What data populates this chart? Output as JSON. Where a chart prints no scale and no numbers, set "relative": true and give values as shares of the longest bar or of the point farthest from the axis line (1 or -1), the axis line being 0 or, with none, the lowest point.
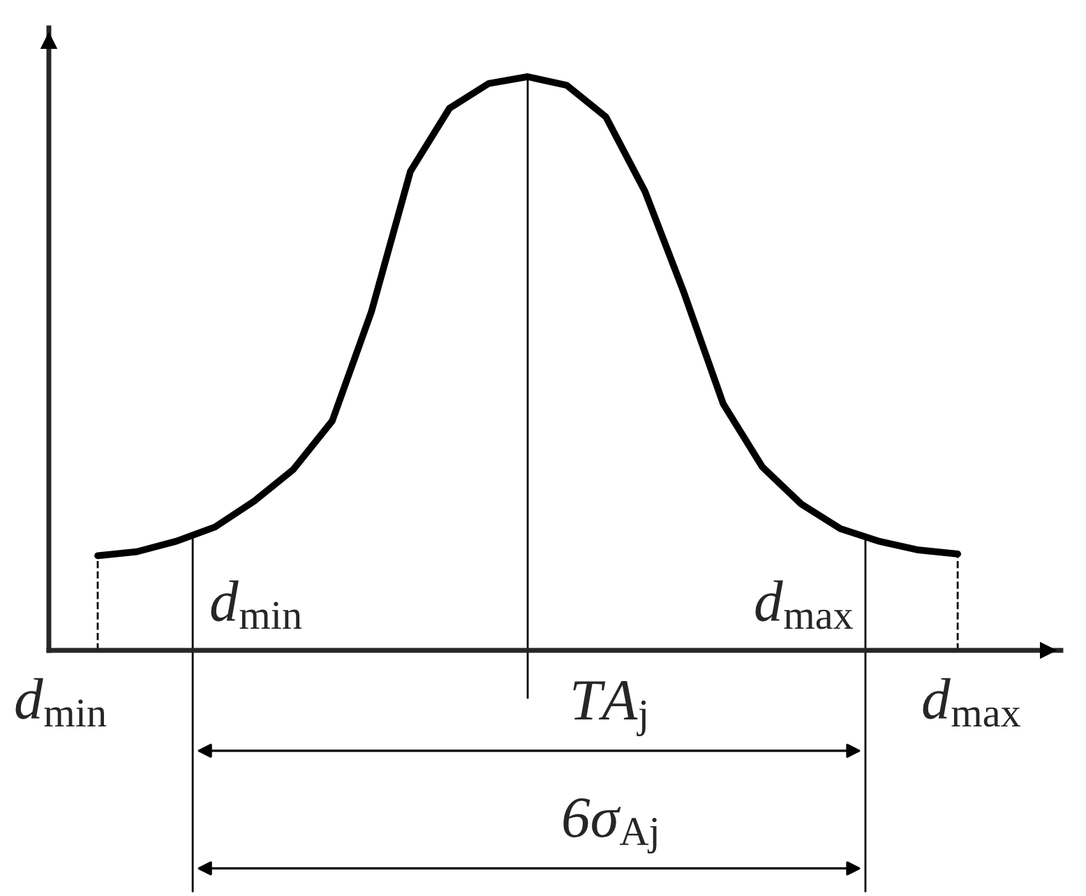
{
  "chart_data": {
    "type": "line",
    "relative": true,
    "categories": [
      null,
      null,
      null,
      null,
      null,
      null,
      null,
      null,
      null,
      null,
      null,
      null,
      null,
      null,
      null,
      null,
      null,
      null,
      null,
      null,
      null,
      null,
      null
    ],
    "series": [
      {
        "color": "#000000",
        "values": [
          0.165,
          0.172,
          0.19,
          0.215,
          0.26,
          0.315,
          0.4,
          0.59,
          0.835,
          0.945,
          0.988,
          1.0,
          0.985,
          0.93,
          0.8,
          0.623,
          0.43,
          0.32,
          0.255,
          0.212,
          0.19,
          0.175,
          0.168
        ]
      }
    ],
    "annotations": [
      "d$_{min}$",
      "d$_{max}$",
      "d$_{min}$",
      "d$_{max}$",
      "TA$_{j}$",
      "6σ$_{Aj}$"
    ],
    "marker": "none",
    "line_style": "solid",
    "legend": false
  }
}
